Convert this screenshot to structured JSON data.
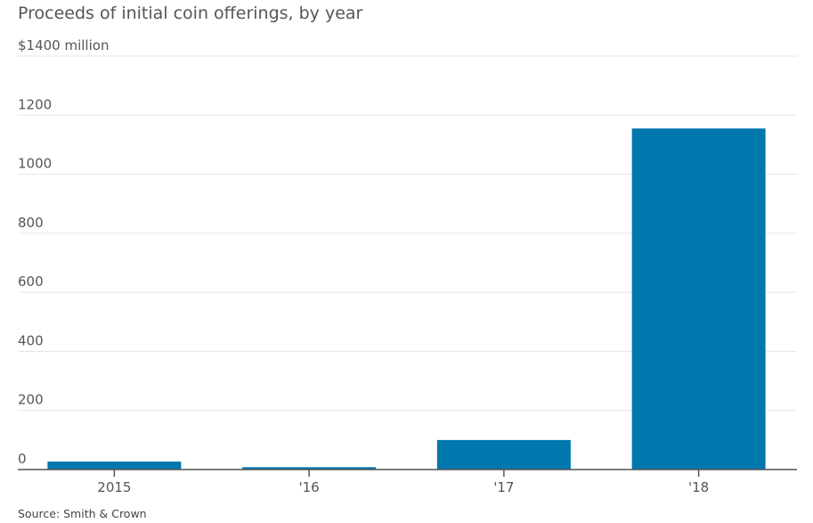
{
  "chart_data": {
    "type": "bar",
    "title": "Proceeds of initial coin offerings, by year",
    "ylabel": "",
    "xlabel": "",
    "y_top_label": "$1400 million",
    "categories": [
      "2015",
      "'16",
      "'17",
      "'18"
    ],
    "values": [
      27,
      8,
      100,
      1155
    ],
    "ylim": [
      0,
      1400
    ],
    "yticks": [
      0,
      200,
      400,
      600,
      800,
      1000,
      1200
    ],
    "grid": true,
    "bar_color": "#0077AD",
    "source": "Source: Smith & Crown"
  }
}
